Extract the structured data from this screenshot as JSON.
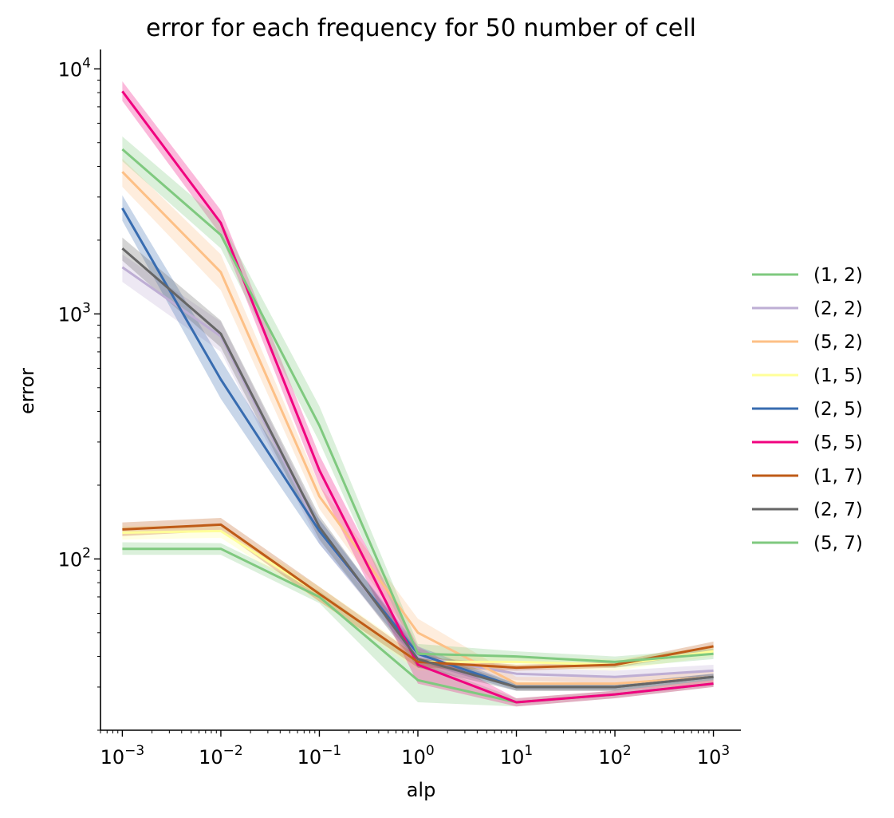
{
  "chart_data": {
    "type": "line",
    "title": "error for each frequency for 50 number of cell",
    "xlabel": "alp",
    "ylabel": "error",
    "xscale": "log",
    "yscale": "log",
    "xlim": [
      0.0006,
      1900
    ],
    "ylim": [
      20,
      12000
    ],
    "x": [
      0.001,
      0.01,
      0.1,
      1,
      10,
      100,
      1000
    ],
    "x_tick_labels": [
      {
        "base": "10",
        "exp": "−3",
        "value": 0.001
      },
      {
        "base": "10",
        "exp": "−2",
        "value": 0.01
      },
      {
        "base": "10",
        "exp": "−1",
        "value": 0.1
      },
      {
        "base": "10",
        "exp": "0",
        "value": 1
      },
      {
        "base": "10",
        "exp": "1",
        "value": 10
      },
      {
        "base": "10",
        "exp": "2",
        "value": 100
      },
      {
        "base": "10",
        "exp": "3",
        "value": 1000
      }
    ],
    "y_tick_labels": [
      {
        "base": "10",
        "exp": "2",
        "value": 100
      },
      {
        "base": "10",
        "exp": "3",
        "value": 1000
      },
      {
        "base": "10",
        "exp": "4",
        "value": 10000
      }
    ],
    "legend_position": "right",
    "series": [
      {
        "name": "(1, 2)",
        "color": "#7fc97f",
        "values": [
          110,
          110,
          70,
          32,
          26,
          28,
          31
        ],
        "band": [
          [
            104,
            117
          ],
          [
            104,
            116
          ],
          [
            66,
            74
          ],
          [
            26,
            38
          ],
          [
            25,
            27
          ],
          [
            27,
            29
          ],
          [
            30,
            32
          ]
        ]
      },
      {
        "name": "(2, 2)",
        "color": "#beaed4",
        "values": [
          1550,
          810,
          130,
          40,
          34,
          33,
          35
        ],
        "band": [
          [
            1350,
            1750
          ],
          [
            700,
            930
          ],
          [
            115,
            145
          ],
          [
            37,
            43
          ],
          [
            32,
            36
          ],
          [
            31,
            35
          ],
          [
            33,
            37
          ]
        ]
      },
      {
        "name": "(5, 2)",
        "color": "#fdc086",
        "values": [
          3800,
          1480,
          180,
          50,
          31,
          31,
          33
        ],
        "band": [
          [
            3300,
            4300
          ],
          [
            1250,
            1750
          ],
          [
            160,
            200
          ],
          [
            44,
            57
          ],
          [
            29,
            33
          ],
          [
            29,
            33
          ],
          [
            31,
            35
          ]
        ]
      },
      {
        "name": "(1, 5)",
        "color": "#ffff99",
        "values": [
          128,
          130,
          72,
          38,
          38,
          37,
          42
        ],
        "band": [
          [
            120,
            136
          ],
          [
            122,
            138
          ],
          [
            67,
            77
          ],
          [
            35,
            41
          ],
          [
            36,
            40
          ],
          [
            35,
            39
          ],
          [
            40,
            44
          ]
        ]
      },
      {
        "name": "(2, 5)",
        "color": "#386cb0",
        "values": [
          2700,
          540,
          130,
          41,
          30,
          30,
          33
        ],
        "band": [
          [
            2400,
            3050
          ],
          [
            450,
            650
          ],
          [
            115,
            145
          ],
          [
            38,
            44
          ],
          [
            29,
            31
          ],
          [
            29,
            31
          ],
          [
            32,
            34
          ]
        ]
      },
      {
        "name": "(5, 5)",
        "color": "#f0027f",
        "values": [
          8100,
          2350,
          230,
          37,
          26,
          28,
          31
        ],
        "band": [
          [
            7400,
            8900
          ],
          [
            2100,
            2650
          ],
          [
            200,
            265
          ],
          [
            31,
            44
          ],
          [
            25,
            27
          ],
          [
            27,
            29
          ],
          [
            30,
            32
          ]
        ]
      },
      {
        "name": "(1, 7)",
        "color": "#bf5b17",
        "values": [
          132,
          138,
          72,
          38,
          36,
          37,
          44
        ],
        "band": [
          [
            124,
            141
          ],
          [
            130,
            147
          ],
          [
            67,
            77
          ],
          [
            36,
            40
          ],
          [
            35,
            37
          ],
          [
            36,
            38
          ],
          [
            42,
            46
          ]
        ]
      },
      {
        "name": "(2, 7)",
        "color": "#666666",
        "values": [
          1850,
          830,
          135,
          39,
          30,
          30,
          33
        ],
        "band": [
          [
            1650,
            2050
          ],
          [
            730,
            940
          ],
          [
            120,
            150
          ],
          [
            36,
            42
          ],
          [
            29,
            31
          ],
          [
            29,
            31
          ],
          [
            32,
            34
          ]
        ]
      },
      {
        "name": "(5, 7)",
        "color": "#7fc97f",
        "values": [
          4700,
          2100,
          350,
          41,
          40,
          38,
          41
        ],
        "band": [
          [
            4200,
            5300
          ],
          [
            1850,
            2400
          ],
          [
            300,
            420
          ],
          [
            38,
            45
          ],
          [
            38,
            42
          ],
          [
            36,
            40
          ],
          [
            39,
            43
          ]
        ]
      }
    ]
  }
}
